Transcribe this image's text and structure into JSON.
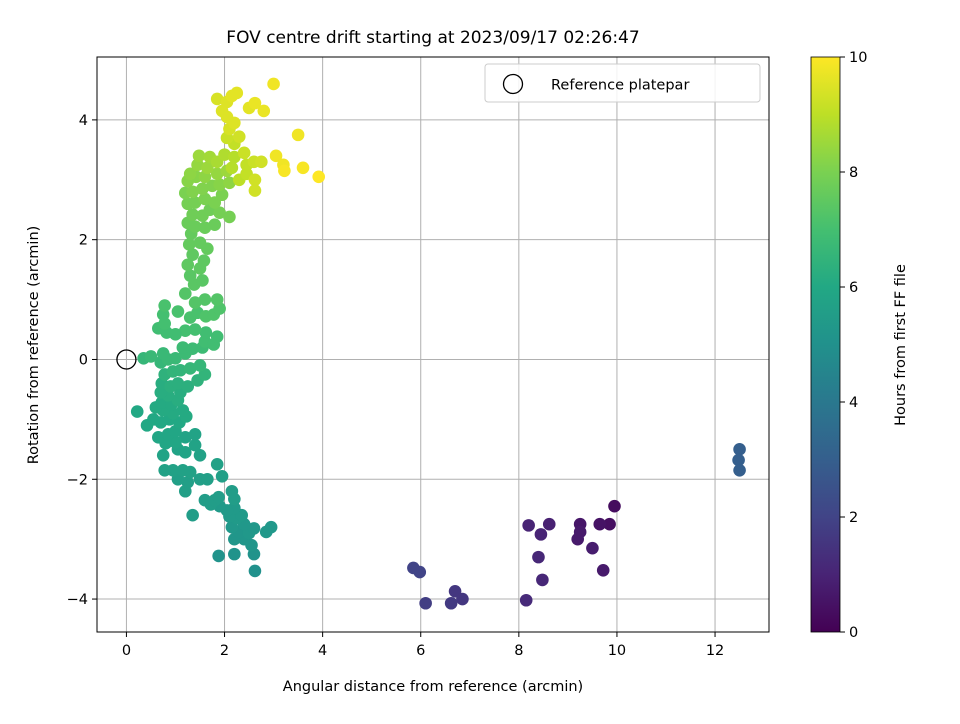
{
  "chart_data": {
    "type": "scatter",
    "title": "FOV centre drift starting at 2023/09/17 02:26:47",
    "xlabel": "Angular distance from reference (arcmin)",
    "ylabel": "Rotation from reference (arcmin)",
    "xlim": [
      -0.6,
      13.1
    ],
    "ylim": [
      -4.55,
      5.05
    ],
    "xticks": [
      0,
      2,
      4,
      6,
      8,
      10,
      12
    ],
    "yticks": [
      -4,
      -2,
      0,
      2,
      4
    ],
    "xtick_labels": [
      "0",
      "2",
      "4",
      "6",
      "8",
      "10",
      "12"
    ],
    "ytick_labels": [
      "−4",
      "−2",
      "0",
      "2",
      "4"
    ],
    "grid": true,
    "legend": {
      "position": "top-right",
      "entries": [
        {
          "label": "Reference platepar",
          "marker": "open-circle",
          "x": 0,
          "y": 0
        }
      ]
    },
    "colorbar": {
      "label": "Hours from first FF file",
      "colormap": "viridis",
      "range": [
        0,
        10
      ],
      "ticks": [
        0,
        2,
        4,
        6,
        8,
        10
      ],
      "tick_labels": [
        "0",
        "2",
        "4",
        "6",
        "8",
        "10"
      ]
    },
    "points": [
      [
        12.5,
        -1.5,
        3.0
      ],
      [
        12.48,
        -1.68,
        3.0
      ],
      [
        12.5,
        -1.85,
        3.0
      ],
      [
        9.95,
        -2.45,
        0.3
      ],
      [
        9.85,
        -2.75,
        0.4
      ],
      [
        9.65,
        -2.75,
        0.5
      ],
      [
        9.25,
        -2.75,
        0.6
      ],
      [
        9.25,
        -2.88,
        0.7
      ],
      [
        9.2,
        -3.0,
        0.7
      ],
      [
        9.5,
        -3.15,
        0.8
      ],
      [
        9.72,
        -3.52,
        0.7
      ],
      [
        8.62,
        -2.75,
        0.9
      ],
      [
        8.2,
        -2.77,
        1.0
      ],
      [
        8.45,
        -2.92,
        1.0
      ],
      [
        8.4,
        -3.3,
        1.1
      ],
      [
        8.48,
        -3.68,
        1.1
      ],
      [
        8.15,
        -4.02,
        1.2
      ],
      [
        6.7,
        -3.87,
        1.6
      ],
      [
        6.85,
        -4.0,
        1.6
      ],
      [
        6.62,
        -4.07,
        1.7
      ],
      [
        6.1,
        -4.07,
        1.8
      ],
      [
        5.98,
        -3.55,
        2.0
      ],
      [
        5.85,
        -3.48,
        2.0
      ],
      [
        2.62,
        -3.53,
        5.0
      ],
      [
        1.88,
        -3.28,
        5.1
      ],
      [
        2.2,
        -3.25,
        5.1
      ],
      [
        2.6,
        -3.25,
        5.1
      ],
      [
        2.55,
        -3.1,
        5.2
      ],
      [
        2.4,
        -3.0,
        5.2
      ],
      [
        2.2,
        -3.0,
        5.2
      ],
      [
        2.3,
        -2.88,
        5.2
      ],
      [
        2.5,
        -2.9,
        5.3
      ],
      [
        2.6,
        -2.82,
        5.3
      ],
      [
        2.95,
        -2.8,
        5.3
      ],
      [
        2.85,
        -2.88,
        5.3
      ],
      [
        2.4,
        -2.75,
        5.3
      ],
      [
        2.15,
        -2.8,
        5.3
      ],
      [
        2.25,
        -2.65,
        5.4
      ],
      [
        2.35,
        -2.6,
        5.4
      ],
      [
        2.1,
        -2.62,
        5.4
      ],
      [
        2.2,
        -2.48,
        5.4
      ],
      [
        2.05,
        -2.52,
        5.4
      ],
      [
        1.9,
        -2.45,
        5.4
      ],
      [
        1.72,
        -2.42,
        5.5
      ],
      [
        1.8,
        -2.35,
        5.5
      ],
      [
        1.6,
        -2.35,
        5.5
      ],
      [
        2.2,
        -2.33,
        5.5
      ],
      [
        2.15,
        -2.2,
        5.5
      ],
      [
        1.88,
        -2.3,
        5.5
      ],
      [
        1.35,
        -2.6,
        5.5
      ],
      [
        1.2,
        -2.2,
        5.6
      ],
      [
        1.25,
        -2.05,
        5.6
      ],
      [
        1.5,
        -2.0,
        5.6
      ],
      [
        1.65,
        -2.0,
        5.6
      ],
      [
        1.95,
        -1.95,
        5.6
      ],
      [
        1.05,
        -2.0,
        5.6
      ],
      [
        1.3,
        -1.88,
        5.7
      ],
      [
        1.15,
        -1.85,
        5.7
      ],
      [
        0.95,
        -1.85,
        5.7
      ],
      [
        0.78,
        -1.85,
        5.7
      ],
      [
        1.85,
        -1.75,
        5.7
      ],
      [
        1.5,
        -1.6,
        5.7
      ],
      [
        1.2,
        -1.55,
        5.8
      ],
      [
        0.75,
        -1.6,
        5.8
      ],
      [
        1.05,
        -1.5,
        5.8
      ],
      [
        1.4,
        -1.43,
        5.8
      ],
      [
        1.4,
        -1.25,
        5.8
      ],
      [
        1.2,
        -1.3,
        5.8
      ],
      [
        1.0,
        -1.38,
        5.9
      ],
      [
        0.8,
        -1.4,
        5.9
      ],
      [
        0.65,
        -1.3,
        5.9
      ],
      [
        0.85,
        -1.25,
        5.9
      ],
      [
        1.0,
        -1.2,
        5.9
      ],
      [
        0.42,
        -1.1,
        6.0
      ],
      [
        0.22,
        -0.87,
        6.0
      ],
      [
        0.55,
        -1.0,
        6.0
      ],
      [
        0.7,
        -1.05,
        6.0
      ],
      [
        0.88,
        -1.0,
        6.0
      ],
      [
        1.08,
        -1.05,
        6.0
      ],
      [
        1.22,
        -0.95,
        6.1
      ],
      [
        1.15,
        -0.85,
        6.1
      ],
      [
        0.95,
        -0.9,
        6.1
      ],
      [
        0.75,
        -0.85,
        6.1
      ],
      [
        0.6,
        -0.8,
        6.1
      ],
      [
        0.72,
        -0.72,
        6.1
      ],
      [
        0.92,
        -0.75,
        6.1
      ],
      [
        1.05,
        -0.68,
        6.2
      ],
      [
        1.1,
        -0.55,
        6.2
      ],
      [
        0.85,
        -0.6,
        6.2
      ],
      [
        0.7,
        -0.55,
        6.2
      ],
      [
        0.72,
        -0.4,
        6.2
      ],
      [
        0.9,
        -0.45,
        6.3
      ],
      [
        1.05,
        -0.4,
        6.3
      ],
      [
        1.25,
        -0.45,
        6.3
      ],
      [
        1.45,
        -0.35,
        6.4
      ],
      [
        1.6,
        -0.25,
        6.5
      ],
      [
        0.78,
        -0.25,
        6.4
      ],
      [
        0.95,
        -0.2,
        6.5
      ],
      [
        1.1,
        -0.18,
        6.5
      ],
      [
        1.3,
        -0.15,
        6.6
      ],
      [
        1.5,
        -0.1,
        6.6
      ],
      [
        0.7,
        -0.05,
        6.6
      ],
      [
        0.85,
        0.0,
        6.7
      ],
      [
        0.35,
        0.02,
        6.6
      ],
      [
        0.5,
        0.05,
        6.7
      ],
      [
        0.75,
        0.1,
        6.7
      ],
      [
        1.0,
        0.02,
        6.7
      ],
      [
        1.2,
        0.1,
        6.8
      ],
      [
        1.15,
        0.2,
        6.8
      ],
      [
        1.35,
        0.18,
        6.8
      ],
      [
        1.55,
        0.2,
        6.8
      ],
      [
        1.6,
        0.3,
        6.9
      ],
      [
        1.78,
        0.25,
        6.9
      ],
      [
        1.85,
        0.38,
        6.9
      ],
      [
        1.62,
        0.45,
        6.9
      ],
      [
        1.4,
        0.5,
        7.0
      ],
      [
        1.2,
        0.48,
        7.0
      ],
      [
        1.0,
        0.42,
        6.9
      ],
      [
        0.82,
        0.45,
        6.9
      ],
      [
        0.65,
        0.52,
        6.9
      ],
      [
        0.78,
        0.6,
        7.0
      ],
      [
        0.75,
        0.75,
        7.0
      ],
      [
        0.78,
        0.9,
        7.1
      ],
      [
        1.05,
        0.8,
        7.1
      ],
      [
        1.3,
        0.7,
        7.1
      ],
      [
        1.45,
        0.78,
        7.1
      ],
      [
        1.62,
        0.72,
        7.2
      ],
      [
        1.78,
        0.75,
        7.2
      ],
      [
        1.9,
        0.85,
        7.2
      ],
      [
        1.85,
        1.0,
        7.3
      ],
      [
        1.6,
        1.0,
        7.3
      ],
      [
        1.4,
        0.95,
        7.3
      ],
      [
        1.2,
        1.1,
        7.3
      ],
      [
        1.38,
        1.25,
        7.4
      ],
      [
        1.55,
        1.32,
        7.4
      ],
      [
        1.3,
        1.4,
        7.4
      ],
      [
        1.25,
        1.58,
        7.5
      ],
      [
        1.5,
        1.52,
        7.5
      ],
      [
        1.58,
        1.65,
        7.5
      ],
      [
        1.35,
        1.75,
        7.5
      ],
      [
        1.28,
        1.92,
        7.6
      ],
      [
        1.5,
        1.95,
        7.6
      ],
      [
        1.65,
        1.85,
        7.6
      ],
      [
        1.32,
        2.1,
        7.6
      ],
      [
        1.4,
        2.22,
        7.7
      ],
      [
        1.6,
        2.2,
        7.7
      ],
      [
        1.8,
        2.25,
        7.7
      ],
      [
        1.25,
        2.28,
        7.7
      ],
      [
        1.35,
        2.42,
        7.8
      ],
      [
        1.55,
        2.4,
        7.8
      ],
      [
        1.7,
        2.5,
        7.8
      ],
      [
        1.9,
        2.45,
        7.9
      ],
      [
        2.1,
        2.38,
        7.9
      ],
      [
        1.25,
        2.6,
        7.9
      ],
      [
        1.4,
        2.62,
        7.9
      ],
      [
        1.6,
        2.68,
        8.0
      ],
      [
        1.8,
        2.62,
        8.0
      ],
      [
        1.95,
        2.75,
        8.0
      ],
      [
        1.2,
        2.78,
        8.0
      ],
      [
        1.35,
        2.8,
        8.1
      ],
      [
        1.55,
        2.85,
        8.1
      ],
      [
        1.75,
        2.9,
        8.1
      ],
      [
        1.9,
        2.92,
        8.2
      ],
      [
        2.1,
        2.95,
        8.3
      ],
      [
        1.25,
        2.98,
        8.2
      ],
      [
        1.42,
        3.05,
        8.2
      ],
      [
        1.6,
        3.05,
        8.3
      ],
      [
        1.85,
        3.1,
        8.4
      ],
      [
        2.05,
        3.15,
        8.5
      ],
      [
        1.3,
        3.1,
        8.3
      ],
      [
        1.45,
        3.25,
        8.4
      ],
      [
        1.65,
        3.2,
        8.5
      ],
      [
        1.48,
        3.4,
        8.5
      ],
      [
        1.7,
        3.38,
        8.6
      ],
      [
        1.85,
        3.3,
        8.7
      ],
      [
        2.0,
        3.42,
        8.8
      ],
      [
        2.2,
        3.38,
        8.9
      ],
      [
        2.15,
        3.2,
        8.9
      ],
      [
        2.3,
        3.0,
        9.0
      ],
      [
        2.45,
        3.1,
        9.1
      ],
      [
        2.45,
        3.25,
        9.1
      ],
      [
        2.6,
        3.3,
        9.2
      ],
      [
        2.75,
        3.3,
        9.3
      ],
      [
        2.62,
        3.0,
        9.3
      ],
      [
        2.62,
        2.82,
        9.3
      ],
      [
        2.4,
        3.45,
        9.2
      ],
      [
        2.2,
        3.6,
        9.1
      ],
      [
        2.05,
        3.7,
        9.2
      ],
      [
        2.3,
        3.72,
        9.3
      ],
      [
        2.1,
        3.85,
        9.4
      ],
      [
        2.2,
        3.95,
        9.5
      ],
      [
        2.05,
        4.05,
        9.5
      ],
      [
        1.95,
        4.15,
        9.5
      ],
      [
        1.85,
        4.35,
        9.4
      ],
      [
        2.05,
        4.3,
        9.5
      ],
      [
        2.15,
        4.4,
        9.6
      ],
      [
        2.25,
        4.45,
        9.6
      ],
      [
        2.5,
        4.2,
        9.6
      ],
      [
        2.62,
        4.28,
        9.7
      ],
      [
        2.8,
        4.15,
        9.7
      ],
      [
        3.0,
        4.6,
        9.8
      ],
      [
        3.05,
        3.4,
        9.8
      ],
      [
        3.2,
        3.25,
        9.8
      ],
      [
        3.22,
        3.15,
        9.9
      ],
      [
        3.5,
        3.75,
        9.8
      ],
      [
        3.6,
        3.2,
        9.9
      ],
      [
        3.92,
        3.05,
        10.0
      ]
    ]
  }
}
